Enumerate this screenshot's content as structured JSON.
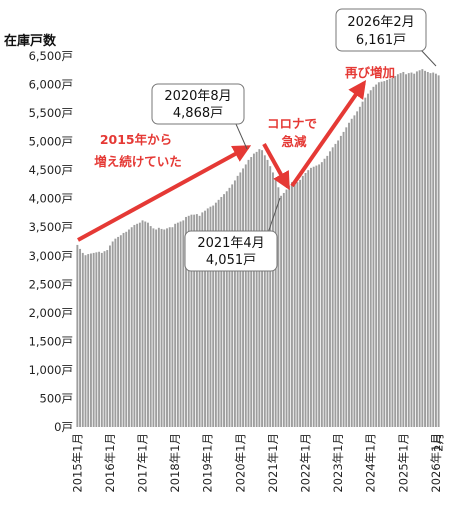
{
  "chart_data": {
    "type": "bar",
    "title": "",
    "ylabel": "在庫戸数",
    "xlabel": "",
    "ylim": [
      0,
      6500
    ],
    "yticks": [
      {
        "value": 0,
        "label": "0戸"
      },
      {
        "value": 500,
        "label": "500戸"
      },
      {
        "value": 1000,
        "label": "1,000戸"
      },
      {
        "value": 1500,
        "label": "1,500戸"
      },
      {
        "value": 2000,
        "label": "2,000戸"
      },
      {
        "value": 2500,
        "label": "2,500戸"
      },
      {
        "value": 3000,
        "label": "3,000戸"
      },
      {
        "value": 3500,
        "label": "3,500戸"
      },
      {
        "value": 4000,
        "label": "4,000戸"
      },
      {
        "value": 4500,
        "label": "4,500戸"
      },
      {
        "value": 5000,
        "label": "5,000戸"
      },
      {
        "value": 5500,
        "label": "5,500戸"
      },
      {
        "value": 6000,
        "label": "6,000戸"
      },
      {
        "value": 6500,
        "label": "6,500戸"
      }
    ],
    "xticks": [
      {
        "index": 0,
        "label": "2015年1月"
      },
      {
        "index": 12,
        "label": "2016年1月"
      },
      {
        "index": 24,
        "label": "2017年1月"
      },
      {
        "index": 36,
        "label": "2018年1月"
      },
      {
        "index": 48,
        "label": "2019年1月"
      },
      {
        "index": 60,
        "label": "2020年1月"
      },
      {
        "index": 72,
        "label": "2021年1月"
      },
      {
        "index": 84,
        "label": "2022年1月"
      },
      {
        "index": 96,
        "label": "2023年1月"
      },
      {
        "index": 108,
        "label": "2024年1月"
      },
      {
        "index": 120,
        "label": "2025年1月"
      },
      {
        "index": 132,
        "label": "2026年1月"
      },
      {
        "index": 133,
        "label": "2月"
      }
    ],
    "grid": false,
    "legend": "none",
    "bar_color": "#9e9e9e",
    "annotation_color": "#e53935",
    "values": [
      3190,
      3120,
      3050,
      3010,
      3030,
      3040,
      3050,
      3060,
      3070,
      3050,
      3080,
      3100,
      3180,
      3250,
      3300,
      3330,
      3360,
      3400,
      3420,
      3460,
      3500,
      3540,
      3560,
      3580,
      3620,
      3600,
      3580,
      3520,
      3480,
      3460,
      3490,
      3470,
      3460,
      3480,
      3500,
      3500,
      3560,
      3580,
      3600,
      3620,
      3680,
      3700,
      3720,
      3720,
      3730,
      3700,
      3760,
      3790,
      3830,
      3860,
      3880,
      3930,
      3980,
      4030,
      4080,
      4130,
      4190,
      4250,
      4320,
      4400,
      4460,
      4530,
      4600,
      4680,
      4730,
      4790,
      4820,
      4868,
      4850,
      4760,
      4680,
      4570,
      4460,
      4330,
      4200,
      4051,
      4100,
      4160,
      4230,
      4290,
      4300,
      4290,
      4330,
      4400,
      4450,
      4500,
      4540,
      4560,
      4580,
      4600,
      4640,
      4700,
      4750,
      4830,
      4900,
      4960,
      5020,
      5100,
      5170,
      5250,
      5330,
      5400,
      5460,
      5530,
      5610,
      5700,
      5770,
      5840,
      5900,
      5960,
      6000,
      6040,
      6050,
      6060,
      6080,
      6100,
      6120,
      6150,
      6180,
      6200,
      6220,
      6180,
      6200,
      6210,
      6190,
      6230,
      6250,
      6270,
      6240,
      6220,
      6200,
      6210,
      6190,
      6161
    ],
    "annotations": {
      "boxes": [
        {
          "lines": [
            "2020年8月",
            "4,868戸"
          ],
          "index": 67
        },
        {
          "lines": [
            "2021年4月",
            "4,051戸"
          ],
          "index": 75
        },
        {
          "lines": [
            "2026年2月",
            "6,161戸"
          ],
          "index": 133
        }
      ],
      "red_labels": [
        {
          "lines": [
            "2015年から",
            "増え続けていた"
          ]
        },
        {
          "lines": [
            "コロナで",
            "急減"
          ]
        },
        {
          "lines": [
            "再び増加"
          ]
        }
      ]
    }
  }
}
